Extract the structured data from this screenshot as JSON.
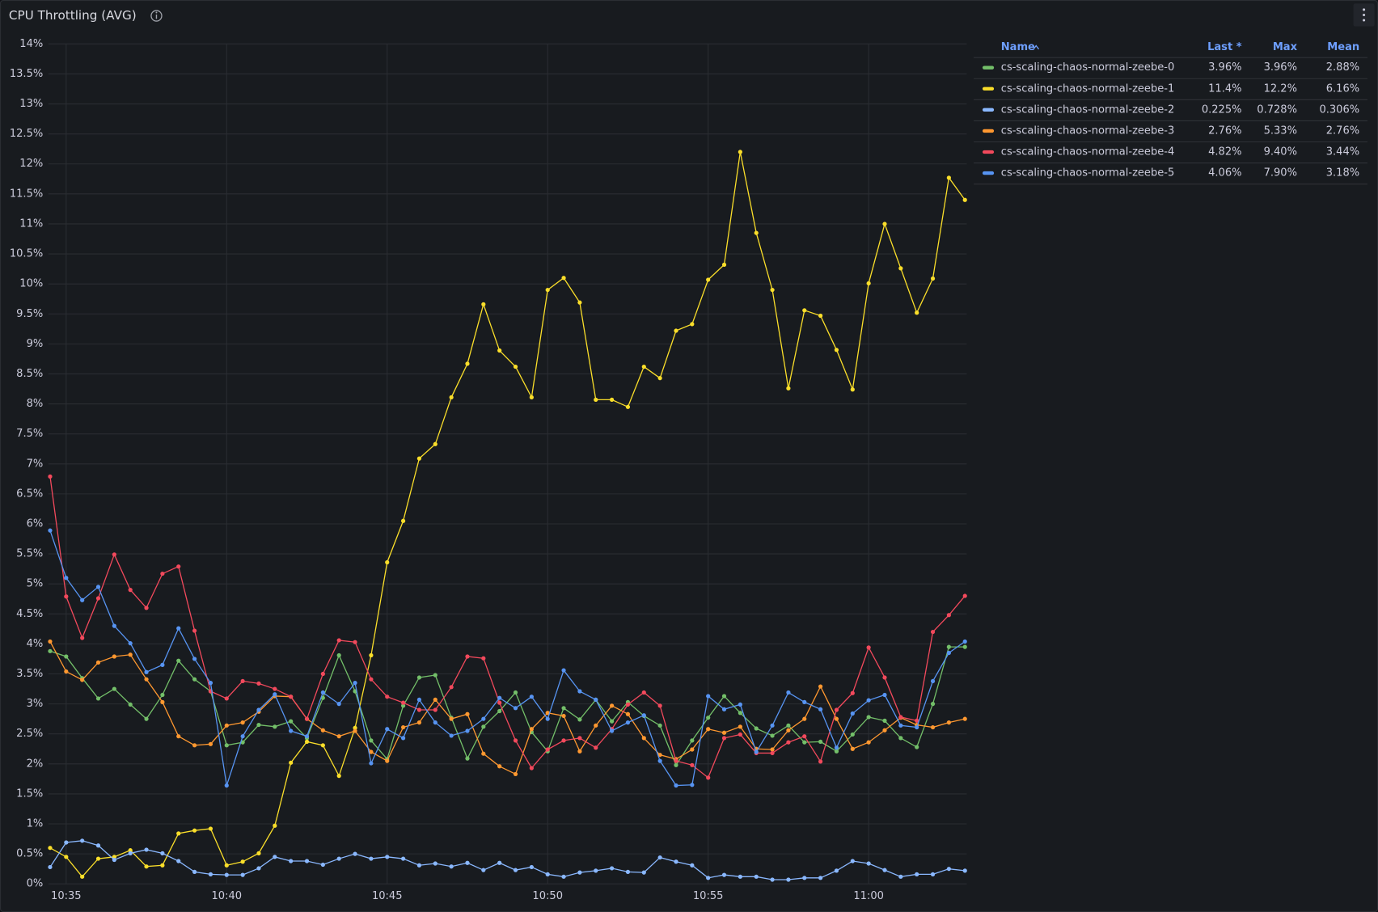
{
  "chart_data": {
    "type": "line",
    "title": "CPU Throttling (AVG)",
    "x": [
      "10:34:30",
      "10:35:00",
      "10:35:30",
      "10:36:00",
      "10:36:30",
      "10:37:00",
      "10:37:30",
      "10:38:00",
      "10:38:30",
      "10:39:00",
      "10:39:30",
      "10:40:00",
      "10:40:30",
      "10:41:00",
      "10:41:30",
      "10:42:00",
      "10:42:30",
      "10:43:00",
      "10:43:30",
      "10:44:00",
      "10:44:30",
      "10:45:00",
      "10:45:30",
      "10:46:00",
      "10:46:30",
      "10:47:00",
      "10:47:30",
      "10:48:00",
      "10:48:30",
      "10:49:00",
      "10:49:30",
      "10:50:00",
      "10:50:30",
      "10:51:00",
      "10:51:30",
      "10:52:00",
      "10:52:30",
      "10:53:00",
      "10:53:30",
      "10:54:00",
      "10:54:30",
      "10:55:00",
      "10:55:30",
      "10:56:00",
      "10:56:30",
      "10:57:00",
      "10:57:30",
      "10:58:00",
      "10:58:30",
      "10:59:00",
      "10:59:30",
      "11:00:00",
      "11:00:30",
      "11:01:00",
      "11:01:30",
      "11:02:00",
      "11:02:30",
      "11:03:00"
    ],
    "xlim": [
      "10:34:30",
      "11:03:00"
    ],
    "xticks": [
      {
        "value": "10:35:00",
        "label": "10:35"
      },
      {
        "value": "10:40:00",
        "label": "10:40"
      },
      {
        "value": "10:45:00",
        "label": "10:45"
      },
      {
        "value": "10:50:00",
        "label": "10:50"
      },
      {
        "value": "10:55:00",
        "label": "10:55"
      },
      {
        "value": "11:00:00",
        "label": "11:00"
      }
    ],
    "ylim": [
      0,
      14
    ],
    "yticks": [
      {
        "value": 0,
        "label": "0%"
      },
      {
        "value": 0.5,
        "label": "0.5%"
      },
      {
        "value": 1,
        "label": "1%"
      },
      {
        "value": 1.5,
        "label": "1.5%"
      },
      {
        "value": 2,
        "label": "2%"
      },
      {
        "value": 2.5,
        "label": "2.5%"
      },
      {
        "value": 3,
        "label": "3%"
      },
      {
        "value": 3.5,
        "label": "3.5%"
      },
      {
        "value": 4,
        "label": "4%"
      },
      {
        "value": 4.5,
        "label": "4.5%"
      },
      {
        "value": 5,
        "label": "5%"
      },
      {
        "value": 5.5,
        "label": "5.5%"
      },
      {
        "value": 6,
        "label": "6%"
      },
      {
        "value": 6.5,
        "label": "6.5%"
      },
      {
        "value": 7,
        "label": "7%"
      },
      {
        "value": 7.5,
        "label": "7.5%"
      },
      {
        "value": 8,
        "label": "8%"
      },
      {
        "value": 8.5,
        "label": "8.5%"
      },
      {
        "value": 9,
        "label": "9%"
      },
      {
        "value": 9.5,
        "label": "9.5%"
      },
      {
        "value": 10,
        "label": "10%"
      },
      {
        "value": 10.5,
        "label": "10.5%"
      },
      {
        "value": 11,
        "label": "11%"
      },
      {
        "value": 11.5,
        "label": "11.5%"
      },
      {
        "value": 12,
        "label": "12%"
      },
      {
        "value": 12.5,
        "label": "12.5%"
      },
      {
        "value": 13,
        "label": "13%"
      },
      {
        "value": 13.5,
        "label": "13.5%"
      },
      {
        "value": 14,
        "label": "14%"
      }
    ],
    "grid": true,
    "legend": "right",
    "legend_columns": [
      "Name",
      "Last *",
      "Max",
      "Mean"
    ],
    "series": [
      {
        "name": "cs-scaling-chaos-normal-zeebe-0",
        "color": "#73bf69",
        "stats": [
          "3.96%",
          "3.96%",
          "2.88%"
        ],
        "values": [
          3.88,
          3.79,
          3.43,
          3.09,
          3.25,
          2.99,
          2.75,
          3.15,
          3.72,
          3.41,
          3.21,
          2.31,
          2.36,
          2.65,
          2.62,
          2.71,
          2.43,
          3.1,
          3.81,
          3.21,
          2.39,
          2.08,
          2.97,
          3.44,
          3.48,
          2.77,
          2.09,
          2.62,
          2.88,
          3.19,
          2.53,
          2.21,
          2.93,
          2.74,
          3.07,
          2.71,
          3.03,
          2.8,
          2.64,
          1.98,
          2.39,
          2.77,
          3.13,
          2.85,
          2.59,
          2.47,
          2.64,
          2.36,
          2.37,
          2.21,
          2.49,
          2.78,
          2.72,
          2.43,
          2.28,
          3.0,
          3.95,
          3.95
        ]
      },
      {
        "name": "cs-scaling-chaos-normal-zeebe-1",
        "color": "#fade2a",
        "stats": [
          "11.4%",
          "12.2%",
          "6.16%"
        ],
        "values": [
          0.6,
          0.45,
          0.12,
          0.42,
          0.45,
          0.56,
          0.29,
          0.31,
          0.84,
          0.89,
          0.92,
          0.31,
          0.37,
          0.51,
          0.97,
          2.02,
          2.37,
          2.31,
          1.8,
          2.6,
          3.81,
          5.36,
          6.05,
          7.09,
          7.33,
          8.11,
          8.67,
          9.66,
          8.89,
          8.62,
          8.11,
          9.9,
          10.1,
          9.69,
          8.07,
          8.07,
          7.95,
          8.62,
          8.43,
          9.22,
          9.33,
          10.07,
          10.32,
          12.2,
          10.85,
          9.9,
          8.26,
          9.56,
          9.47,
          8.9,
          8.24,
          10.01,
          11.0,
          10.26,
          9.52,
          10.09,
          11.77,
          11.4
        ]
      },
      {
        "name": "cs-scaling-chaos-normal-zeebe-2",
        "color": "#8ab8ff",
        "stats": [
          "0.225%",
          "0.728%",
          "0.306%"
        ],
        "values": [
          0.28,
          0.69,
          0.72,
          0.64,
          0.4,
          0.51,
          0.57,
          0.51,
          0.38,
          0.2,
          0.16,
          0.15,
          0.15,
          0.26,
          0.45,
          0.38,
          0.38,
          0.32,
          0.42,
          0.5,
          0.42,
          0.45,
          0.42,
          0.31,
          0.34,
          0.29,
          0.35,
          0.23,
          0.35,
          0.23,
          0.28,
          0.16,
          0.12,
          0.19,
          0.22,
          0.26,
          0.2,
          0.19,
          0.44,
          0.37,
          0.31,
          0.1,
          0.15,
          0.12,
          0.12,
          0.07,
          0.07,
          0.1,
          0.1,
          0.22,
          0.38,
          0.34,
          0.23,
          0.12,
          0.16,
          0.16,
          0.25,
          0.22
        ]
      },
      {
        "name": "cs-scaling-chaos-normal-zeebe-3",
        "color": "#ff9830",
        "stats": [
          "2.76%",
          "5.33%",
          "2.76%"
        ],
        "values": [
          4.04,
          3.54,
          3.4,
          3.69,
          3.79,
          3.82,
          3.41,
          3.03,
          2.46,
          2.31,
          2.33,
          2.64,
          2.69,
          2.87,
          3.13,
          3.12,
          2.75,
          2.56,
          2.46,
          2.55,
          2.2,
          2.05,
          2.61,
          2.69,
          3.07,
          2.75,
          2.83,
          2.17,
          1.96,
          1.83,
          2.58,
          2.85,
          2.8,
          2.21,
          2.64,
          2.97,
          2.83,
          2.43,
          2.15,
          2.08,
          2.24,
          2.58,
          2.52,
          2.62,
          2.25,
          2.24,
          2.56,
          2.75,
          3.29,
          2.75,
          2.25,
          2.36,
          2.56,
          2.77,
          2.65,
          2.61,
          2.69,
          2.75
        ]
      },
      {
        "name": "cs-scaling-chaos-normal-zeebe-4",
        "color": "#f2495c",
        "stats": [
          "4.82%",
          "9.40%",
          "3.44%"
        ],
        "values": [
          6.79,
          4.79,
          4.1,
          4.76,
          5.49,
          4.9,
          4.6,
          5.17,
          5.29,
          4.22,
          3.21,
          3.09,
          3.38,
          3.34,
          3.25,
          3.12,
          2.75,
          3.5,
          4.06,
          4.03,
          3.41,
          3.12,
          3.02,
          2.9,
          2.9,
          3.28,
          3.79,
          3.76,
          3.02,
          2.39,
          1.93,
          2.24,
          2.39,
          2.43,
          2.27,
          2.58,
          2.99,
          3.19,
          2.97,
          2.05,
          1.98,
          1.77,
          2.43,
          2.49,
          2.18,
          2.18,
          2.36,
          2.46,
          2.04,
          2.9,
          3.18,
          3.94,
          3.44,
          2.78,
          2.72,
          4.2,
          4.48,
          4.8
        ]
      },
      {
        "name": "cs-scaling-chaos-normal-zeebe-5",
        "color": "#5794f2",
        "stats": [
          "4.06%",
          "7.90%",
          "3.18%"
        ],
        "values": [
          5.89,
          5.1,
          4.73,
          4.95,
          4.3,
          4.01,
          3.53,
          3.65,
          4.26,
          3.75,
          3.35,
          1.64,
          2.46,
          2.9,
          3.16,
          2.55,
          2.46,
          3.19,
          3.0,
          3.35,
          2.01,
          2.58,
          2.43,
          3.07,
          2.69,
          2.47,
          2.55,
          2.75,
          3.1,
          2.93,
          3.12,
          2.75,
          3.56,
          3.21,
          3.07,
          2.55,
          2.69,
          2.81,
          2.05,
          1.64,
          1.65,
          3.13,
          2.91,
          2.99,
          2.2,
          2.64,
          3.19,
          3.03,
          2.91,
          2.27,
          2.84,
          3.06,
          3.15,
          2.64,
          2.61,
          3.38,
          3.85,
          4.04
        ]
      }
    ]
  }
}
